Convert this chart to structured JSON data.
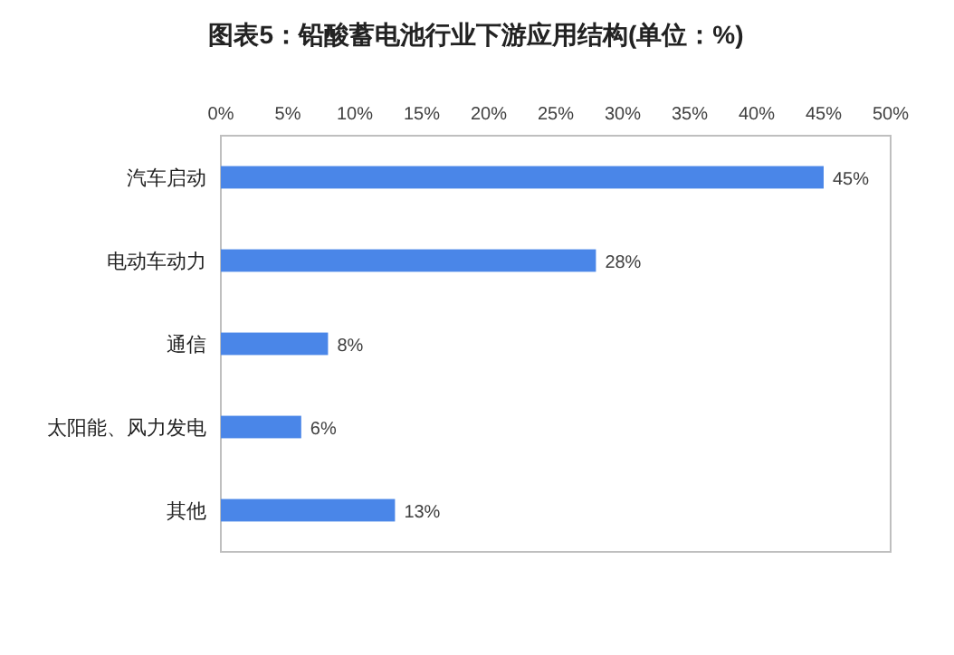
{
  "chart_data": {
    "type": "bar",
    "orientation": "horizontal",
    "title": "图表5：铅酸蓄电池行业下游应用结构(单位：%)",
    "categories": [
      "汽车启动",
      "电动车动力",
      "通信",
      "太阳能、风力发电",
      "其他"
    ],
    "values": [
      45,
      28,
      8,
      6,
      13
    ],
    "value_labels": [
      "45%",
      "28%",
      "8%",
      "6%",
      "13%"
    ],
    "color": "#4a86e8",
    "xlim": [
      0,
      50
    ],
    "xticks": [
      {
        "value": 0,
        "label": "0%"
      },
      {
        "value": 5,
        "label": "5%"
      },
      {
        "value": 10,
        "label": "10%"
      },
      {
        "value": 15,
        "label": "15%"
      },
      {
        "value": 20,
        "label": "20%"
      },
      {
        "value": 25,
        "label": "25%"
      },
      {
        "value": 30,
        "label": "30%"
      },
      {
        "value": 35,
        "label": "35%"
      },
      {
        "value": 40,
        "label": "40%"
      },
      {
        "value": 45,
        "label": "45%"
      },
      {
        "value": 50,
        "label": "50%"
      }
    ]
  }
}
